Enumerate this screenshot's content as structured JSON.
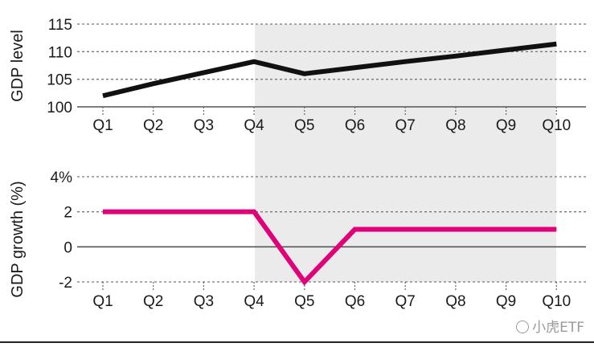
{
  "chart_data": [
    {
      "type": "line",
      "categories": [
        "Q1",
        "Q2",
        "Q3",
        "Q4",
        "Q5",
        "Q6",
        "Q7",
        "Q8",
        "Q9",
        "Q10"
      ],
      "series": [
        {
          "values": [
            102,
            104.2,
            106.2,
            108.2,
            106,
            107.1,
            108.2,
            109.2,
            110.3,
            111.4
          ],
          "color": "#111111"
        }
      ],
      "ylabel": "GDP level",
      "ylim": [
        100,
        115
      ],
      "yticks": [
        100,
        105,
        110,
        115
      ],
      "ytick_labels": [
        "100",
        "105",
        "110",
        "115"
      ],
      "shaded_range": [
        "Q4",
        "Q10"
      ],
      "grid": "horizontal-dashed"
    },
    {
      "type": "line",
      "categories": [
        "Q1",
        "Q2",
        "Q3",
        "Q4",
        "Q5",
        "Q6",
        "Q7",
        "Q8",
        "Q9",
        "Q10"
      ],
      "series": [
        {
          "values": [
            2,
            2,
            2,
            2,
            -2,
            1,
            1,
            1,
            1,
            1
          ],
          "color": "#e0007a"
        }
      ],
      "ylabel": "GDP growth (%)",
      "ylim": [
        -2,
        4
      ],
      "yticks": [
        -2,
        0,
        2,
        4
      ],
      "ytick_labels": [
        "-2",
        "0",
        "2",
        "4%"
      ],
      "shaded_range": [
        "Q4",
        "Q10"
      ],
      "grid": "horizontal-dashed"
    }
  ],
  "colors": {
    "shade": "#ebebeb",
    "level_line": "#111111",
    "growth_line": "#e0007a"
  },
  "watermark": {
    "text": "小虎ETF",
    "icon": "circle-logo-icon"
  }
}
